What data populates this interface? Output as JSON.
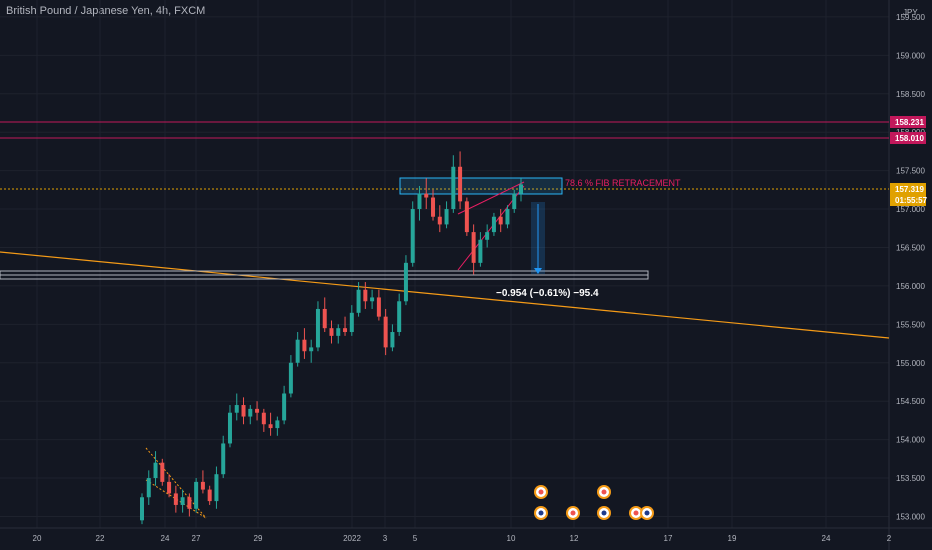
{
  "header": {
    "title": "British Pound / Japanese Yen, 4h, FXCM"
  },
  "chart_data": {
    "type": "candlestick",
    "title": "British Pound / Japanese Yen, 4h, FXCM",
    "currency": "JPY",
    "ylim": [
      152.85,
      159.72
    ],
    "y_ticks": [
      "159.500",
      "159.000",
      "158.500",
      "158.000",
      "157.500",
      "157.000",
      "156.500",
      "156.000",
      "155.500",
      "155.000",
      "154.500",
      "154.000",
      "153.500",
      "153.000"
    ],
    "x_ticks": [
      "20",
      "22",
      "24",
      "27",
      "29",
      "2022",
      "3",
      "5",
      "10",
      "12",
      "17",
      "19",
      "24",
      "2"
    ],
    "price_tags": [
      {
        "value": "158.231",
        "color": "#c2185b"
      },
      {
        "value": "158.010",
        "color": "#c2185b"
      },
      {
        "value": "157.319",
        "color": "#e0a100"
      },
      {
        "value": "01:55:57",
        "color": "#e0a100"
      }
    ],
    "horizontal_lines": [
      158.231,
      158.01,
      157.319
    ],
    "annotations": {
      "fib_label": "78.6 % FIB RETRACEMENT",
      "measure_label": "−0.954 (−0.61%) −95.4"
    },
    "candles": [
      [
        152.95,
        153.3,
        152.9,
        153.25
      ],
      [
        153.25,
        153.6,
        153.15,
        153.5
      ],
      [
        153.5,
        153.85,
        153.4,
        153.7
      ],
      [
        153.7,
        153.75,
        153.4,
        153.45
      ],
      [
        153.45,
        153.55,
        153.25,
        153.3
      ],
      [
        153.3,
        153.4,
        153.05,
        153.15
      ],
      [
        153.15,
        153.35,
        153.05,
        153.25
      ],
      [
        153.25,
        153.3,
        153.0,
        153.1
      ],
      [
        153.1,
        153.5,
        153.05,
        153.45
      ],
      [
        153.45,
        153.6,
        153.3,
        153.35
      ],
      [
        153.35,
        153.4,
        153.15,
        153.2
      ],
      [
        153.2,
        153.65,
        153.1,
        153.55
      ],
      [
        153.55,
        154.05,
        153.5,
        153.95
      ],
      [
        153.95,
        154.45,
        153.9,
        154.35
      ],
      [
        154.35,
        154.6,
        154.25,
        154.45
      ],
      [
        154.45,
        154.55,
        154.2,
        154.3
      ],
      [
        154.3,
        154.45,
        154.2,
        154.4
      ],
      [
        154.4,
        154.5,
        154.25,
        154.35
      ],
      [
        154.35,
        154.4,
        154.1,
        154.2
      ],
      [
        154.2,
        154.35,
        154.05,
        154.15
      ],
      [
        154.15,
        154.3,
        154.05,
        154.25
      ],
      [
        154.25,
        154.7,
        154.2,
        154.6
      ],
      [
        154.6,
        155.1,
        154.55,
        155.0
      ],
      [
        155.0,
        155.4,
        154.95,
        155.3
      ],
      [
        155.3,
        155.45,
        155.05,
        155.15
      ],
      [
        155.15,
        155.3,
        155.0,
        155.2
      ],
      [
        155.2,
        155.8,
        155.15,
        155.7
      ],
      [
        155.7,
        155.85,
        155.4,
        155.45
      ],
      [
        155.45,
        155.55,
        155.25,
        155.35
      ],
      [
        155.35,
        155.5,
        155.25,
        155.45
      ],
      [
        155.45,
        155.6,
        155.35,
        155.4
      ],
      [
        155.4,
        155.75,
        155.35,
        155.65
      ],
      [
        155.65,
        156.05,
        155.6,
        155.95
      ],
      [
        155.95,
        156.05,
        155.7,
        155.8
      ],
      [
        155.8,
        155.95,
        155.7,
        155.85
      ],
      [
        155.85,
        155.95,
        155.55,
        155.6
      ],
      [
        155.6,
        155.7,
        155.1,
        155.2
      ],
      [
        155.2,
        155.5,
        155.15,
        155.4
      ],
      [
        155.4,
        155.9,
        155.35,
        155.8
      ],
      [
        155.8,
        156.4,
        155.75,
        156.3
      ],
      [
        156.3,
        157.1,
        156.25,
        157.0
      ],
      [
        157.0,
        157.3,
        156.85,
        157.2
      ],
      [
        157.2,
        157.4,
        157.0,
        157.15
      ],
      [
        157.15,
        157.25,
        156.85,
        156.9
      ],
      [
        156.9,
        157.05,
        156.7,
        156.8
      ],
      [
        156.8,
        157.1,
        156.75,
        157.0
      ],
      [
        157.0,
        157.7,
        156.95,
        157.55
      ],
      [
        157.55,
        157.75,
        157.0,
        157.1
      ],
      [
        157.1,
        157.15,
        156.65,
        156.7
      ],
      [
        156.7,
        156.8,
        156.15,
        156.3
      ],
      [
        156.3,
        156.7,
        156.25,
        156.6
      ],
      [
        156.6,
        156.8,
        156.5,
        156.7
      ],
      [
        156.7,
        156.95,
        156.65,
        156.9
      ],
      [
        156.9,
        157.0,
        156.7,
        156.8
      ],
      [
        156.8,
        157.05,
        156.75,
        157.0
      ],
      [
        157.0,
        157.25,
        156.95,
        157.2
      ],
      [
        157.2,
        157.4,
        157.1,
        157.32
      ]
    ]
  }
}
